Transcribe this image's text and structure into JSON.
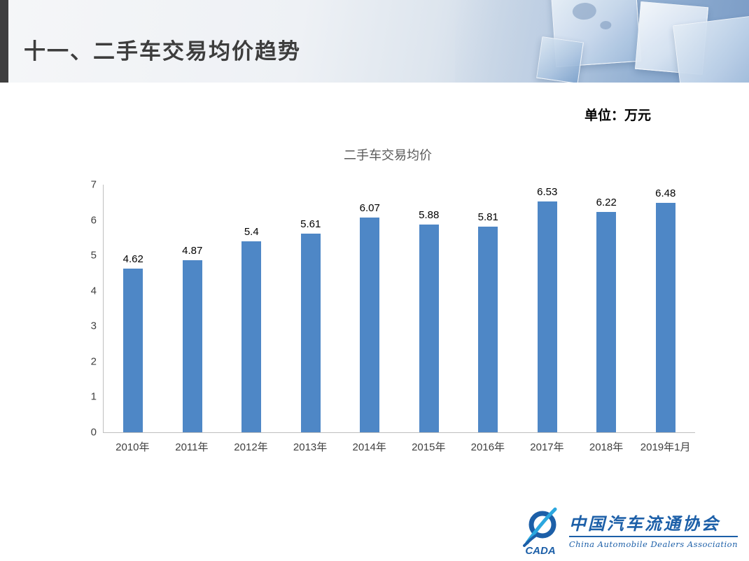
{
  "header": {
    "title": "十一、二手车交易均价趋势"
  },
  "unit_label": "单位：万元",
  "chart_data": {
    "type": "bar",
    "title": "二手车交易均价",
    "categories": [
      "2010年",
      "2011年",
      "2012年",
      "2013年",
      "2014年",
      "2015年",
      "2016年",
      "2017年",
      "2018年",
      "2019年1月"
    ],
    "values": [
      4.62,
      4.87,
      5.4,
      5.61,
      6.07,
      5.88,
      5.81,
      6.53,
      6.22,
      6.48
    ],
    "ylim": [
      0,
      7
    ],
    "yticks": [
      0,
      1,
      2,
      3,
      4,
      5,
      6,
      7
    ],
    "grid": false,
    "legend": "none",
    "data_labels": true,
    "bar_color": "#4e87c6"
  },
  "logo": {
    "abbr": "CADA",
    "name_cn": "中国汽车流通协会",
    "name_en": "China  Automobile  Dealers  Association"
  },
  "colors": {
    "bar": "#4e87c6",
    "header_stripe": "#3f3f3f",
    "axis_line": "#bfbfbf",
    "logo_blue": "#1c5fa8",
    "logo_cyan": "#2ba7df"
  }
}
